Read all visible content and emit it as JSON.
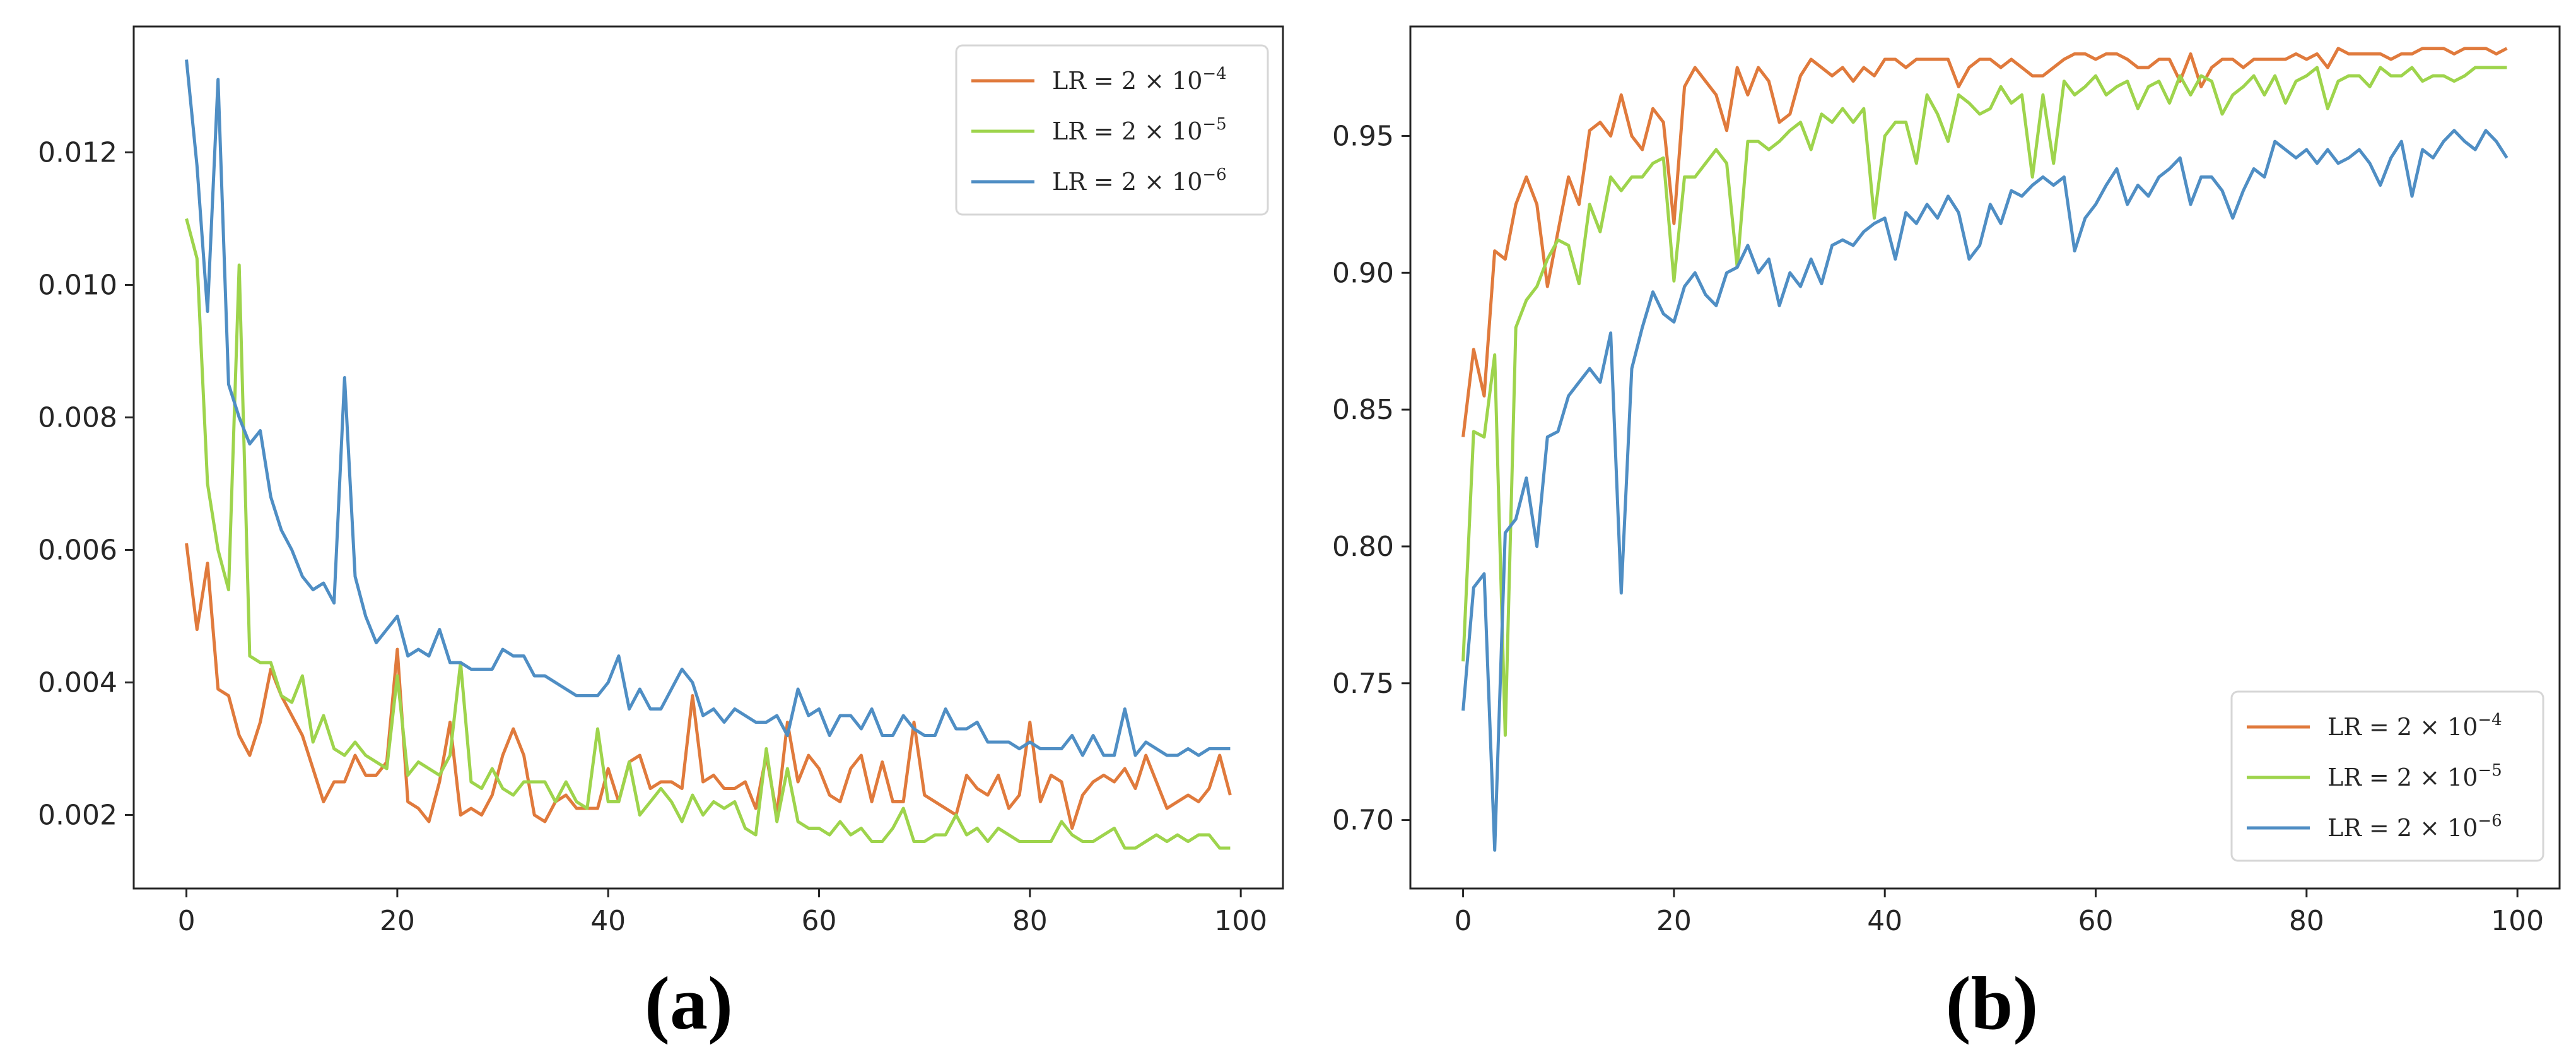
{
  "chart_data": [
    {
      "type": "line",
      "panel_label": "(a)",
      "title": "",
      "xlabel": "",
      "ylabel": "",
      "xlim": [
        -5,
        104
      ],
      "ylim": [
        0.00089,
        0.0139
      ],
      "xticks": [
        0,
        20,
        40,
        60,
        80,
        100
      ],
      "xtick_labels": [
        "0",
        "20",
        "40",
        "60",
        "80",
        "100"
      ],
      "yticks": [
        0.002,
        0.004,
        0.006,
        0.008,
        0.01,
        0.012
      ],
      "ytick_labels": [
        "0.002",
        "0.004",
        "0.006",
        "0.008",
        "0.010",
        "0.012"
      ],
      "grid": false,
      "legend_position": "top-right",
      "series": [
        {
          "name": "LR = 2 × 10⁻⁴",
          "base": "LR = 2 × 10",
          "exponent": "−4",
          "color": "#e07a3c",
          "values": [
            0.0061,
            0.0048,
            0.0058,
            0.0039,
            0.0038,
            0.0032,
            0.0029,
            0.0034,
            0.0042,
            0.0038,
            0.0035,
            0.0032,
            0.0027,
            0.0022,
            0.0025,
            0.0025,
            0.0029,
            0.0026,
            0.0026,
            0.0028,
            0.0045,
            0.0022,
            0.0021,
            0.0019,
            0.0025,
            0.0034,
            0.002,
            0.0021,
            0.002,
            0.0023,
            0.0029,
            0.0033,
            0.0029,
            0.002,
            0.0019,
            0.0022,
            0.0023,
            0.0021,
            0.0021,
            0.0021,
            0.0027,
            0.0022,
            0.0028,
            0.0029,
            0.0024,
            0.0025,
            0.0025,
            0.0024,
            0.0038,
            0.0025,
            0.0026,
            0.0024,
            0.0024,
            0.0025,
            0.0021,
            0.0029,
            0.002,
            0.0034,
            0.0025,
            0.0029,
            0.0027,
            0.0023,
            0.0022,
            0.0027,
            0.0029,
            0.0022,
            0.0028,
            0.0022,
            0.0022,
            0.0034,
            0.0023,
            0.0022,
            0.0021,
            0.002,
            0.0026,
            0.0024,
            0.0023,
            0.0026,
            0.0021,
            0.0023,
            0.0034,
            0.0022,
            0.0026,
            0.0025,
            0.0018,
            0.0023,
            0.0025,
            0.0026,
            0.0025,
            0.0027,
            0.0024,
            0.0029,
            0.0025,
            0.0021,
            0.0022,
            0.0023,
            0.0022,
            0.0024,
            0.0029,
            0.0023
          ]
        },
        {
          "name": "LR = 2 × 10⁻⁵",
          "base": "LR = 2 × 10",
          "exponent": "−5",
          "color": "#9ed44c",
          "values": [
            0.011,
            0.0104,
            0.007,
            0.006,
            0.0054,
            0.0103,
            0.0044,
            0.0043,
            0.0043,
            0.0038,
            0.0037,
            0.0041,
            0.0031,
            0.0035,
            0.003,
            0.0029,
            0.0031,
            0.0029,
            0.0028,
            0.0027,
            0.0041,
            0.0026,
            0.0028,
            0.0027,
            0.0026,
            0.0029,
            0.0043,
            0.0025,
            0.0024,
            0.0027,
            0.0024,
            0.0023,
            0.0025,
            0.0025,
            0.0025,
            0.0022,
            0.0025,
            0.0022,
            0.0021,
            0.0033,
            0.0022,
            0.0022,
            0.0028,
            0.002,
            0.0022,
            0.0024,
            0.0022,
            0.0019,
            0.0023,
            0.002,
            0.0022,
            0.0021,
            0.0022,
            0.0018,
            0.0017,
            0.003,
            0.0019,
            0.0027,
            0.0019,
            0.0018,
            0.0018,
            0.0017,
            0.0019,
            0.0017,
            0.0018,
            0.0016,
            0.0016,
            0.0018,
            0.0021,
            0.0016,
            0.0016,
            0.0017,
            0.0017,
            0.002,
            0.0017,
            0.0018,
            0.0016,
            0.0018,
            0.0017,
            0.0016,
            0.0016,
            0.0016,
            0.0016,
            0.0019,
            0.0017,
            0.0016,
            0.0016,
            0.0017,
            0.0018,
            0.0015,
            0.0015,
            0.0016,
            0.0017,
            0.0016,
            0.0017,
            0.0016,
            0.0017,
            0.0017,
            0.0015,
            0.0015
          ]
        },
        {
          "name": "LR = 2 × 10⁻⁶",
          "base": "LR = 2 × 10",
          "exponent": "−6",
          "color": "#4f8ec4",
          "values": [
            0.0134,
            0.0118,
            0.0096,
            0.0131,
            0.0085,
            0.008,
            0.0076,
            0.0078,
            0.0068,
            0.0063,
            0.006,
            0.0056,
            0.0054,
            0.0055,
            0.0052,
            0.0086,
            0.0056,
            0.005,
            0.0046,
            0.0048,
            0.005,
            0.0044,
            0.0045,
            0.0044,
            0.0048,
            0.0043,
            0.0043,
            0.0042,
            0.0042,
            0.0042,
            0.0045,
            0.0044,
            0.0044,
            0.0041,
            0.0041,
            0.004,
            0.0039,
            0.0038,
            0.0038,
            0.0038,
            0.004,
            0.0044,
            0.0036,
            0.0039,
            0.0036,
            0.0036,
            0.0039,
            0.0042,
            0.004,
            0.0035,
            0.0036,
            0.0034,
            0.0036,
            0.0035,
            0.0034,
            0.0034,
            0.0035,
            0.0032,
            0.0039,
            0.0035,
            0.0036,
            0.0032,
            0.0035,
            0.0035,
            0.0033,
            0.0036,
            0.0032,
            0.0032,
            0.0035,
            0.0033,
            0.0032,
            0.0032,
            0.0036,
            0.0033,
            0.0033,
            0.0034,
            0.0031,
            0.0031,
            0.0031,
            0.003,
            0.0031,
            0.003,
            0.003,
            0.003,
            0.0032,
            0.0029,
            0.0032,
            0.0029,
            0.0029,
            0.0036,
            0.0029,
            0.0031,
            0.003,
            0.0029,
            0.0029,
            0.003,
            0.0029,
            0.003,
            0.003,
            0.003
          ]
        }
      ]
    },
    {
      "type": "line",
      "panel_label": "(b)",
      "title": "",
      "xlabel": "",
      "ylabel": "",
      "xlim": [
        -5,
        104
      ],
      "ylim": [
        0.675,
        0.99
      ],
      "xticks": [
        0,
        20,
        40,
        60,
        80,
        100
      ],
      "xtick_labels": [
        "0",
        "20",
        "40",
        "60",
        "80",
        "100"
      ],
      "yticks": [
        0.7,
        0.75,
        0.8,
        0.85,
        0.9,
        0.95
      ],
      "ytick_labels": [
        "0.70",
        "0.75",
        "0.80",
        "0.85",
        "0.90",
        "0.95"
      ],
      "grid": false,
      "legend_position": "lower-right",
      "series": [
        {
          "name": "LR = 2 × 10⁻⁴",
          "base": "LR = 2 × 10",
          "exponent": "−4",
          "color": "#e07a3c",
          "values": [
            0.84,
            0.872,
            0.855,
            0.908,
            0.905,
            0.925,
            0.935,
            0.925,
            0.895,
            0.915,
            0.935,
            0.925,
            0.952,
            0.955,
            0.95,
            0.965,
            0.95,
            0.945,
            0.96,
            0.955,
            0.918,
            0.968,
            0.975,
            0.97,
            0.965,
            0.952,
            0.975,
            0.965,
            0.975,
            0.97,
            0.955,
            0.958,
            0.972,
            0.978,
            0.975,
            0.972,
            0.975,
            0.97,
            0.975,
            0.972,
            0.978,
            0.978,
            0.975,
            0.978,
            0.978,
            0.978,
            0.978,
            0.968,
            0.975,
            0.978,
            0.978,
            0.975,
            0.978,
            0.975,
            0.972,
            0.972,
            0.975,
            0.978,
            0.98,
            0.98,
            0.978,
            0.98,
            0.98,
            0.978,
            0.975,
            0.975,
            0.978,
            0.978,
            0.97,
            0.98,
            0.968,
            0.975,
            0.978,
            0.978,
            0.975,
            0.978,
            0.978,
            0.978,
            0.978,
            0.98,
            0.978,
            0.98,
            0.975,
            0.982,
            0.98,
            0.98,
            0.98,
            0.98,
            0.978,
            0.98,
            0.98,
            0.982,
            0.982,
            0.982,
            0.98,
            0.982,
            0.982,
            0.982,
            0.98,
            0.982
          ]
        },
        {
          "name": "LR = 2 × 10⁻⁵",
          "base": "LR = 2 × 10",
          "exponent": "−5",
          "color": "#9ed44c",
          "values": [
            0.758,
            0.842,
            0.84,
            0.87,
            0.731,
            0.88,
            0.89,
            0.895,
            0.905,
            0.912,
            0.91,
            0.896,
            0.925,
            0.915,
            0.935,
            0.93,
            0.935,
            0.935,
            0.94,
            0.942,
            0.897,
            0.935,
            0.935,
            0.94,
            0.945,
            0.94,
            0.902,
            0.948,
            0.948,
            0.945,
            0.948,
            0.952,
            0.955,
            0.945,
            0.958,
            0.955,
            0.96,
            0.955,
            0.96,
            0.92,
            0.95,
            0.955,
            0.955,
            0.94,
            0.965,
            0.958,
            0.948,
            0.965,
            0.962,
            0.958,
            0.96,
            0.968,
            0.962,
            0.965,
            0.935,
            0.965,
            0.94,
            0.97,
            0.965,
            0.968,
            0.972,
            0.965,
            0.968,
            0.97,
            0.96,
            0.968,
            0.97,
            0.962,
            0.972,
            0.965,
            0.972,
            0.97,
            0.958,
            0.965,
            0.968,
            0.972,
            0.965,
            0.972,
            0.962,
            0.97,
            0.972,
            0.975,
            0.96,
            0.97,
            0.972,
            0.972,
            0.968,
            0.975,
            0.972,
            0.972,
            0.975,
            0.97,
            0.972,
            0.972,
            0.97,
            0.972,
            0.975,
            0.975,
            0.975,
            0.975
          ]
        },
        {
          "name": "LR = 2 × 10⁻⁶",
          "base": "LR = 2 × 10",
          "exponent": "−6",
          "color": "#4f8ec4",
          "values": [
            0.74,
            0.785,
            0.79,
            0.689,
            0.805,
            0.81,
            0.825,
            0.8,
            0.84,
            0.842,
            0.855,
            0.86,
            0.865,
            0.86,
            0.878,
            0.783,
            0.865,
            0.88,
            0.893,
            0.885,
            0.882,
            0.895,
            0.9,
            0.892,
            0.888,
            0.9,
            0.902,
            0.91,
            0.9,
            0.905,
            0.888,
            0.9,
            0.895,
            0.905,
            0.896,
            0.91,
            0.912,
            0.91,
            0.915,
            0.918,
            0.92,
            0.905,
            0.922,
            0.918,
            0.925,
            0.92,
            0.928,
            0.922,
            0.905,
            0.91,
            0.925,
            0.918,
            0.93,
            0.928,
            0.932,
            0.935,
            0.932,
            0.935,
            0.908,
            0.92,
            0.925,
            0.932,
            0.938,
            0.925,
            0.932,
            0.928,
            0.935,
            0.938,
            0.942,
            0.925,
            0.935,
            0.935,
            0.93,
            0.92,
            0.93,
            0.938,
            0.935,
            0.948,
            0.945,
            0.942,
            0.945,
            0.94,
            0.945,
            0.94,
            0.942,
            0.945,
            0.94,
            0.932,
            0.942,
            0.948,
            0.928,
            0.945,
            0.942,
            0.948,
            0.952,
            0.948,
            0.945,
            0.952,
            0.948,
            0.942
          ]
        }
      ]
    }
  ]
}
